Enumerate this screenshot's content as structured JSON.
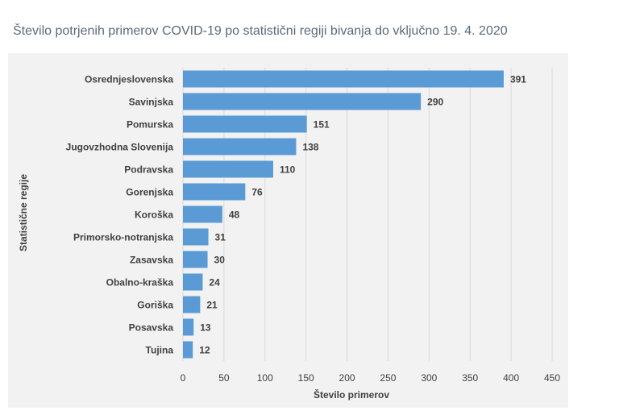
{
  "title": "Število potrjenih primerov COVID-19 po statistični regiji bivanja do vključno 19. 4. 2020",
  "colors": {
    "bar": "#5b9bd5",
    "background": "#f2f2f2",
    "grid": "#d9d9d9",
    "title": "#5b6a79",
    "text": "#404040"
  },
  "chart_data": {
    "type": "bar",
    "orientation": "horizontal",
    "title": "Število potrjenih primerov COVID-19 po statistični regiji bivanja do vključno 19. 4. 2020",
    "xlabel": "Število primerov",
    "ylabel": "Statistične regije",
    "categories": [
      "Osrednjeslovenska",
      "Savinjska",
      "Pomurska",
      "Jugovzhodna Slovenija",
      "Podravska",
      "Gorenjska",
      "Koroška",
      "Primorsko-notranjska",
      "Zasavska",
      "Obalno-kraška",
      "Goriška",
      "Posavska",
      "Tujina"
    ],
    "values": [
      391,
      290,
      151,
      138,
      110,
      76,
      48,
      31,
      30,
      24,
      21,
      13,
      12
    ],
    "xlim": [
      0,
      450
    ],
    "xticks": [
      "0",
      "50",
      "100",
      "150",
      "200",
      "250",
      "300",
      "350",
      "400",
      "450"
    ],
    "grid": true,
    "data_labels": true
  }
}
